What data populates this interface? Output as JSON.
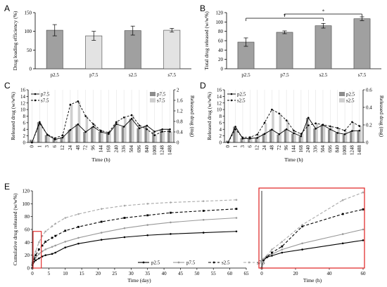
{
  "panel_labels": [
    "A",
    "B",
    "C",
    "D",
    "E"
  ],
  "chart_data": [
    {
      "id": "A",
      "type": "bar",
      "ylabel": "Drug loading efficiency (%)",
      "categories": [
        "p2.5",
        "p7.5",
        "s2.5",
        "s7.5"
      ],
      "values": [
        103,
        88,
        102,
        103
      ],
      "errors": [
        15,
        12,
        12,
        5
      ],
      "colors": [
        "#a0a0a0",
        "#e3e3e3",
        "#a0a0a0",
        "#e3e3e3"
      ],
      "ylim": [
        0,
        150
      ],
      "yticks": [
        "0",
        "50",
        "100",
        "150"
      ]
    },
    {
      "id": "B",
      "type": "bar",
      "ylabel": "Total drug released (w/w%)",
      "categories": [
        "p2.5",
        "p7.5",
        "s2.5",
        "s7.5"
      ],
      "values": [
        57,
        78,
        92,
        107
      ],
      "errors": [
        9,
        3,
        5,
        4
      ],
      "colors": [
        "#a0a0a0",
        "#a0a0a0",
        "#a0a0a0",
        "#a0a0a0"
      ],
      "ylim": [
        0,
        120
      ],
      "yticks": [
        "0",
        "20",
        "40",
        "60",
        "80",
        "100",
        "120"
      ],
      "significance": [
        {
          "from": 0,
          "to": 2,
          "label": "*",
          "level": 108
        },
        {
          "from": 1,
          "to": 3,
          "label": "*",
          "level": 117
        }
      ]
    },
    {
      "id": "C",
      "type": "bar+line",
      "xlabel": "Time (h)",
      "ylabel": "Released drug (w/w%)",
      "ylabel_right": "Released drug (mg)",
      "categories": [
        "0",
        "1",
        "3",
        "6",
        "12",
        "24",
        "48",
        "72",
        "96",
        "144",
        "168",
        "240",
        "336",
        "504",
        "696",
        "840",
        "1008",
        "1248",
        "1488"
      ],
      "ylim": [
        0,
        16
      ],
      "yticks": [
        "0",
        "2",
        "4",
        "6",
        "8",
        "10",
        "12",
        "14",
        "16"
      ],
      "ylim_right": [
        0,
        2
      ],
      "yticks_right": [
        "0",
        "0.4",
        "0.8",
        "1.2",
        "1.6",
        "2"
      ],
      "series": [
        {
          "name": "p7.5",
          "style": "solid",
          "marker": "circle",
          "color": "#000000",
          "values": [
            0,
            6.2,
            2.3,
            0.9,
            1.5,
            3.8,
            5.5,
            3.2,
            4.8,
            3.2,
            2.6,
            5.6,
            4.8,
            7.2,
            4.3,
            5.1,
            3.3,
            4.0,
            4.0
          ]
        },
        {
          "name": "s7.5",
          "style": "dashed",
          "marker": "circle",
          "color": "#000000",
          "values": [
            0,
            5.8,
            2.4,
            1.3,
            2.2,
            11.5,
            12.5,
            8.0,
            5.6,
            3.6,
            3.0,
            6.2,
            7.6,
            8.3,
            5.2,
            4.0,
            2.2,
            3.3,
            3.3
          ]
        }
      ],
      "bar_series": [
        {
          "name": "p7.5",
          "color": "#8c8c8c",
          "values": [
            0.1,
            0.77,
            0.28,
            0.13,
            0.19,
            0.48,
            0.69,
            0.4,
            0.6,
            0.4,
            0.33,
            0.7,
            0.6,
            0.9,
            0.54,
            0.64,
            0.41,
            0.5,
            0.5
          ]
        },
        {
          "name": "s7.5",
          "color": "#cfcfcf",
          "values": [
            0.1,
            0.72,
            0.3,
            0.16,
            0.27,
            1.44,
            1.56,
            1.0,
            0.7,
            0.45,
            0.38,
            0.78,
            0.95,
            1.04,
            0.65,
            0.5,
            0.28,
            0.41,
            0.41
          ]
        }
      ]
    },
    {
      "id": "D",
      "type": "bar+line",
      "xlabel": "Time (h)",
      "ylabel": "Released drug (w/w%)",
      "ylabel_right": "Released drug (mg)",
      "categories": [
        "0",
        "1",
        "3",
        "6",
        "12",
        "24",
        "48",
        "72",
        "96",
        "144",
        "168",
        "240",
        "336",
        "504",
        "696",
        "840",
        "1008",
        "1248",
        "1488"
      ],
      "ylim": [
        0,
        16
      ],
      "yticks": [
        "0",
        "2",
        "4",
        "6",
        "8",
        "10",
        "12",
        "14",
        "16"
      ],
      "ylim_right": [
        0,
        0.6
      ],
      "yticks_right": [
        "0",
        "0.2",
        "0.4",
        "0.6"
      ],
      "series": [
        {
          "name": "p2.5",
          "style": "solid",
          "marker": "circle",
          "color": "#000000",
          "values": [
            0,
            4.8,
            1.2,
            1.2,
            1.4,
            2.6,
            3.9,
            2.5,
            4.0,
            2.8,
            1.9,
            7.5,
            4.2,
            5.3,
            4.0,
            2.9,
            2.5,
            3.5,
            3.6
          ]
        },
        {
          "name": "s2.5",
          "style": "dashed",
          "marker": "circle",
          "color": "#000000",
          "values": [
            0,
            4.0,
            1.5,
            1.6,
            2.4,
            6.0,
            10.0,
            8.8,
            6.7,
            3.6,
            2.6,
            5.2,
            5.8,
            5.4,
            4.9,
            4.4,
            3.6,
            6.2,
            5.0
          ]
        }
      ],
      "bar_series": [
        {
          "name": "p2.5",
          "color": "#8c8c8c",
          "values": [
            0.02,
            0.18,
            0.05,
            0.05,
            0.05,
            0.1,
            0.15,
            0.09,
            0.15,
            0.1,
            0.07,
            0.28,
            0.16,
            0.2,
            0.15,
            0.11,
            0.09,
            0.13,
            0.13
          ]
        },
        {
          "name": "s2.5",
          "color": "#cfcfcf",
          "values": [
            0.02,
            0.15,
            0.06,
            0.06,
            0.09,
            0.22,
            0.37,
            0.33,
            0.25,
            0.13,
            0.1,
            0.19,
            0.22,
            0.2,
            0.18,
            0.16,
            0.13,
            0.23,
            0.19
          ]
        }
      ]
    },
    {
      "id": "E",
      "type": "line",
      "xlabel": "Time (day)",
      "ylabel": "Cumulative drug released (w/w%)",
      "xlim": [
        0,
        65
      ],
      "ylim": [
        0,
        120
      ],
      "xticks": [
        "0",
        "5",
        "10",
        "15",
        "20",
        "25",
        "30",
        "35",
        "40",
        "45",
        "50",
        "55",
        "60",
        "65"
      ],
      "yticks": [
        "0",
        "20",
        "40",
        "60",
        "80",
        "100",
        "120"
      ],
      "series": [
        {
          "name": "p2.5",
          "color": "#000000",
          "style": "solid",
          "marker": "circle",
          "x": [
            0,
            0.04,
            0.13,
            0.25,
            0.5,
            1,
            2,
            3,
            4,
            6,
            7,
            10,
            14,
            21,
            28,
            35,
            42,
            52,
            62
          ],
          "y": [
            0,
            5,
            7,
            8,
            10,
            12,
            15,
            18,
            20,
            22,
            24,
            32,
            38,
            44,
            48,
            51,
            53,
            55,
            57
          ]
        },
        {
          "name": "p7.5",
          "color": "#999999",
          "style": "solid",
          "marker": "circle",
          "x": [
            0,
            0.04,
            0.13,
            0.25,
            0.5,
            1,
            2,
            3,
            4,
            6,
            7,
            10,
            14,
            21,
            28,
            35,
            42,
            52,
            62
          ],
          "y": [
            0,
            6,
            9,
            10,
            12,
            16,
            22,
            26,
            29,
            33,
            35,
            41,
            47,
            55,
            62,
            67,
            71,
            75,
            78
          ]
        },
        {
          "name": "s2.5",
          "color": "#000000",
          "style": "dashed",
          "marker": "square",
          "x": [
            0,
            0.04,
            0.13,
            0.25,
            0.5,
            1,
            2,
            3,
            4,
            6,
            7,
            10,
            14,
            21,
            28,
            35,
            42,
            52,
            62
          ],
          "y": [
            0,
            5,
            8,
            10,
            14,
            20,
            29,
            35,
            41,
            47,
            50,
            58,
            64,
            72,
            78,
            82,
            86,
            89,
            92
          ]
        },
        {
          "name": "s7.5",
          "color": "#a8a8a8",
          "style": "dashed",
          "marker": "circle",
          "x": [
            0,
            0.04,
            0.13,
            0.25,
            0.5,
            1,
            2,
            3,
            4,
            6,
            7,
            10,
            14,
            21,
            28,
            35,
            42,
            52,
            62
          ],
          "y": [
            0,
            6,
            9,
            12,
            18,
            26,
            40,
            50,
            57,
            65,
            69,
            78,
            84,
            92,
            97,
            100,
            102,
            104,
            106
          ]
        }
      ]
    },
    {
      "id": "E-inset",
      "type": "line",
      "xlabel": "Time (h)",
      "xlim": [
        0,
        60
      ],
      "ylim": [
        0,
        50
      ],
      "xticks": [
        "0",
        "20",
        "40",
        "60"
      ],
      "series": [
        {
          "name": "p2.5",
          "x": [
            0,
            1,
            3,
            6,
            12,
            24,
            48,
            60
          ],
          "y": [
            0,
            5,
            7,
            8,
            10,
            12,
            16,
            18
          ]
        },
        {
          "name": "p7.5",
          "x": [
            0,
            1,
            3,
            6,
            12,
            24,
            48,
            60
          ],
          "y": [
            0,
            6,
            8,
            9,
            12,
            16,
            22,
            25
          ]
        },
        {
          "name": "s2.5",
          "x": [
            0,
            1,
            3,
            6,
            12,
            24,
            48,
            60
          ],
          "y": [
            0,
            5,
            7,
            10,
            14,
            27,
            35,
            38
          ]
        },
        {
          "name": "s7.5",
          "x": [
            0,
            1,
            3,
            6,
            12,
            24,
            48,
            60
          ],
          "y": [
            0,
            6,
            8,
            12,
            17,
            28,
            44,
            49
          ]
        }
      ]
    }
  ]
}
